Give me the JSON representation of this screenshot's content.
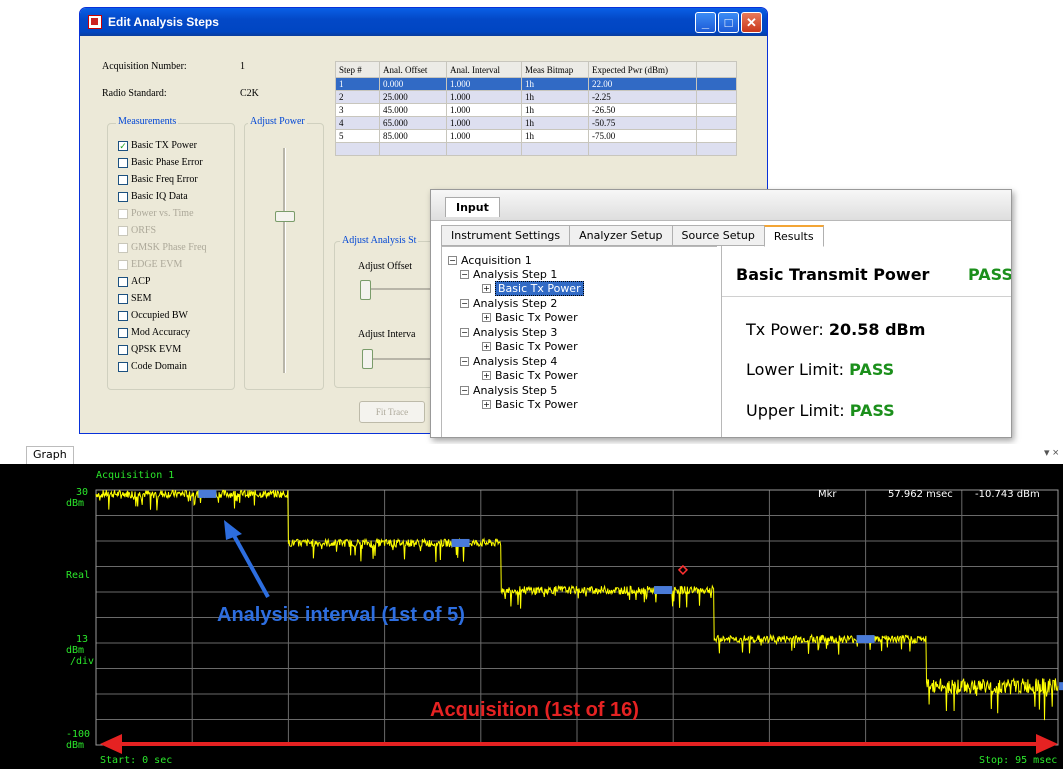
{
  "window": {
    "title": "Edit Analysis Steps",
    "acquisition_label": "Acquisition Number:",
    "acquisition_value": "1",
    "standard_label": "Radio Standard:",
    "standard_value": "C2K",
    "measurements_title": "Measurements",
    "adjust_power_title": "Adjust Power",
    "adjust_analysis_title": "Adjust Analysis St",
    "adjust_offset_label": "Adjust Offset",
    "adjust_interval_label": "Adjust Interva",
    "fit_trace_label": "Fit Trace",
    "measurements": [
      {
        "label": "Basic TX Power",
        "checked": true,
        "enabled": true
      },
      {
        "label": "Basic Phase Error",
        "checked": false,
        "enabled": true
      },
      {
        "label": "Basic Freq Error",
        "checked": false,
        "enabled": true
      },
      {
        "label": "Basic IQ Data",
        "checked": false,
        "enabled": true
      },
      {
        "label": "Power vs. Time",
        "checked": false,
        "enabled": false
      },
      {
        "label": "ORFS",
        "checked": false,
        "enabled": false
      },
      {
        "label": "GMSK Phase Freq",
        "checked": false,
        "enabled": false
      },
      {
        "label": "EDGE EVM",
        "checked": false,
        "enabled": false
      },
      {
        "label": "ACP",
        "checked": false,
        "enabled": true
      },
      {
        "label": "SEM",
        "checked": false,
        "enabled": true
      },
      {
        "label": "Occupied BW",
        "checked": false,
        "enabled": true
      },
      {
        "label": "Mod Accuracy",
        "checked": false,
        "enabled": true
      },
      {
        "label": "QPSK EVM",
        "checked": false,
        "enabled": true
      },
      {
        "label": "Code Domain",
        "checked": false,
        "enabled": true
      }
    ],
    "table": {
      "headers": [
        "Step #",
        "Anal. Offset",
        "Anal. Interval",
        "Meas Bitmap",
        "Expected Pwr (dBm)"
      ],
      "rows": [
        [
          "1",
          "0.000",
          "1.000",
          "1h",
          "22.00"
        ],
        [
          "2",
          "25.000",
          "1.000",
          "1h",
          "-2.25"
        ],
        [
          "3",
          "45.000",
          "1.000",
          "1h",
          "-26.50"
        ],
        [
          "4",
          "65.000",
          "1.000",
          "1h",
          "-50.75"
        ],
        [
          "5",
          "85.000",
          "1.000",
          "1h",
          "-75.00"
        ]
      ]
    }
  },
  "input_panel": {
    "title": "Input",
    "tabs": [
      "Instrument Settings",
      "Analyzer Setup",
      "Source Setup",
      "Results"
    ],
    "active_tab": "Results",
    "tree": {
      "root": "Acquisition 1",
      "steps": [
        {
          "label": "Analysis Step 1",
          "child": "Basic Tx Power"
        },
        {
          "label": "Analysis Step 2",
          "child": "Basic Tx Power"
        },
        {
          "label": "Analysis Step 3",
          "child": "Basic Tx Power"
        },
        {
          "label": "Analysis Step 4",
          "child": "Basic Tx Power"
        },
        {
          "label": "Analysis Step 5",
          "child": "Basic Tx Power"
        }
      ]
    },
    "results": {
      "title": "Basic Transmit Power",
      "status": "PASS",
      "tx_power_label": "Tx Power:",
      "tx_power_value": "20.58 dBm",
      "lower_limit_label": "Lower Limit:",
      "lower_limit_value": "PASS",
      "upper_limit_label": "Upper Limit:",
      "upper_limit_value": "PASS"
    }
  },
  "graph": {
    "tab_label": "Graph",
    "tab_controls": "▾ ×",
    "trace_label": "Acquisition 1",
    "y_top": "30",
    "y_top_unit": "dBm",
    "y_mid": "Real",
    "y_scale": "13",
    "y_scale_unit": "dBm",
    "y_scale_div": "/div",
    "y_bottom": "-100",
    "y_bottom_unit": "dBm",
    "x_start": "Start: 0  sec",
    "x_stop": "Stop: 95 msec",
    "marker_label": "Mkr",
    "marker_time": "57.962 msec",
    "marker_value": "-10.743 dBm",
    "callout_interval": "Analysis interval (1st of 5)",
    "callout_acquisition": "Acquisition (1st of 16)",
    "colors": {
      "trace": "#ffff00",
      "grid": "#6a6a6a",
      "text": "#2be82b",
      "interval": "#4a7bd8",
      "arrow_blue": "#2d6ee0",
      "arrow_red": "#e52222"
    }
  },
  "chart_data": {
    "type": "line",
    "title": "",
    "series": [
      {
        "x": [
          0,
          19,
          19,
          40,
          40,
          61,
          61,
          82,
          82,
          95
        ],
        "values": [
          28,
          28,
          3,
          3,
          -21,
          -21,
          -46,
          -46,
          -70,
          -70
        ]
      }
    ],
    "xlabel": "",
    "ylabel": "",
    "xlim": [
      0,
      95
    ],
    "ylim": [
      -100,
      30
    ],
    "x_unit": "msec",
    "y_unit": "dBm",
    "grid": true
  }
}
